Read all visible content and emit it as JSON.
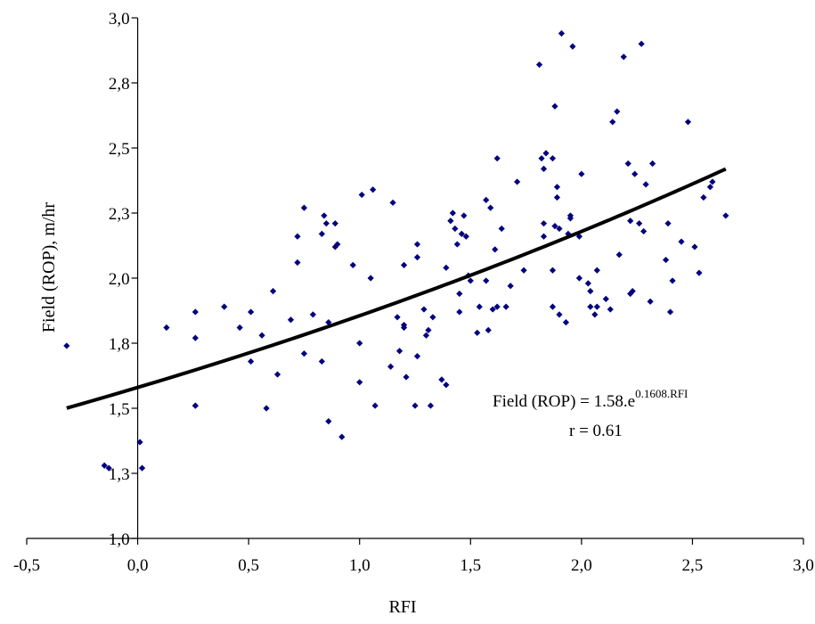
{
  "chart_data": {
    "type": "scatter",
    "xlabel": "RFI",
    "ylabel": "Field (ROP), m/hr",
    "xlim": [
      -0.5,
      3.0
    ],
    "ylim": [
      1.0,
      3.0
    ],
    "x_ticks": [
      "-0,5",
      "0,0",
      "0,5",
      "1,0",
      "1,5",
      "2,0",
      "2,5",
      "3,0"
    ],
    "y_ticks": [
      "1,0",
      "1,3",
      "1,5",
      "1,8",
      "2,0",
      "2,3",
      "2,5",
      "2,8",
      "3,0"
    ],
    "grid": false,
    "marker_color": "#000080",
    "fit_color": "#000000",
    "fit": {
      "model": "exponential",
      "a": 1.58,
      "b": 0.1608,
      "x_range": [
        -0.32,
        2.65
      ]
    },
    "annotation": {
      "equation_prefix": "Field (ROP) = 1.58.e",
      "equation_exponent": "0.1608.RFI",
      "r_text": "r = 0.61"
    },
    "series": [
      {
        "points": [
          [
            -0.32,
            1.74
          ],
          [
            -0.15,
            1.28
          ],
          [
            -0.13,
            1.27
          ],
          [
            0.01,
            1.37
          ],
          [
            0.02,
            1.27
          ],
          [
            0.13,
            1.81
          ],
          [
            0.26,
            1.51
          ],
          [
            0.26,
            1.51
          ],
          [
            0.26,
            1.77
          ],
          [
            0.26,
            1.87
          ],
          [
            0.39,
            1.89
          ],
          [
            0.46,
            1.81
          ],
          [
            0.51,
            1.68
          ],
          [
            0.51,
            1.87
          ],
          [
            0.56,
            1.78
          ],
          [
            0.58,
            1.5
          ],
          [
            0.61,
            1.95
          ],
          [
            0.63,
            1.63
          ],
          [
            0.69,
            1.84
          ],
          [
            0.72,
            2.06
          ],
          [
            0.72,
            2.16
          ],
          [
            0.75,
            1.71
          ],
          [
            0.75,
            2.27
          ],
          [
            0.79,
            1.86
          ],
          [
            0.83,
            1.68
          ],
          [
            0.83,
            2.17
          ],
          [
            0.84,
            2.24
          ],
          [
            0.85,
            2.21
          ],
          [
            0.86,
            1.83
          ],
          [
            0.86,
            1.45
          ],
          [
            0.89,
            2.12
          ],
          [
            0.89,
            2.21
          ],
          [
            0.9,
            2.13
          ],
          [
            0.92,
            1.39
          ],
          [
            0.97,
            2.05
          ],
          [
            1.0,
            1.6
          ],
          [
            1.0,
            1.75
          ],
          [
            1.01,
            2.32
          ],
          [
            1.05,
            2.0
          ],
          [
            1.06,
            2.34
          ],
          [
            1.07,
            1.51
          ],
          [
            1.14,
            1.66
          ],
          [
            1.15,
            2.29
          ],
          [
            1.17,
            1.85
          ],
          [
            1.18,
            1.72
          ],
          [
            1.2,
            1.81
          ],
          [
            1.2,
            1.82
          ],
          [
            1.2,
            2.05
          ],
          [
            1.21,
            1.62
          ],
          [
            1.25,
            1.51
          ],
          [
            1.26,
            1.7
          ],
          [
            1.26,
            2.08
          ],
          [
            1.26,
            2.13
          ],
          [
            1.29,
            1.88
          ],
          [
            1.3,
            1.78
          ],
          [
            1.31,
            1.8
          ],
          [
            1.32,
            1.51
          ],
          [
            1.33,
            1.85
          ],
          [
            1.37,
            1.61
          ],
          [
            1.39,
            1.59
          ],
          [
            1.39,
            2.04
          ],
          [
            1.41,
            2.22
          ],
          [
            1.42,
            2.25
          ],
          [
            1.43,
            2.19
          ],
          [
            1.44,
            2.13
          ],
          [
            1.45,
            1.87
          ],
          [
            1.45,
            1.94
          ],
          [
            1.46,
            2.17
          ],
          [
            1.47,
            2.24
          ],
          [
            1.48,
            2.16
          ],
          [
            1.49,
            2.01
          ],
          [
            1.5,
            1.99
          ],
          [
            1.53,
            1.79
          ],
          [
            1.54,
            1.89
          ],
          [
            1.57,
            1.99
          ],
          [
            1.57,
            2.3
          ],
          [
            1.58,
            1.8
          ],
          [
            1.59,
            2.27
          ],
          [
            1.6,
            1.88
          ],
          [
            1.61,
            2.11
          ],
          [
            1.62,
            1.89
          ],
          [
            1.62,
            2.46
          ],
          [
            1.64,
            2.19
          ],
          [
            1.66,
            1.89
          ],
          [
            1.68,
            1.97
          ],
          [
            1.71,
            2.37
          ],
          [
            1.74,
            2.03
          ],
          [
            1.81,
            2.82
          ],
          [
            1.82,
            2.46
          ],
          [
            1.83,
            2.42
          ],
          [
            1.83,
            2.16
          ],
          [
            1.83,
            2.21
          ],
          [
            1.84,
            2.48
          ],
          [
            1.87,
            2.46
          ],
          [
            1.87,
            2.03
          ],
          [
            1.87,
            1.89
          ],
          [
            1.88,
            2.2
          ],
          [
            1.88,
            2.66
          ],
          [
            1.89,
            2.35
          ],
          [
            1.89,
            2.31
          ],
          [
            1.9,
            1.86
          ],
          [
            1.9,
            2.19
          ],
          [
            1.91,
            2.94
          ],
          [
            1.93,
            1.83
          ],
          [
            1.94,
            2.17
          ],
          [
            1.95,
            2.23
          ],
          [
            1.95,
            2.24
          ],
          [
            1.96,
            2.89
          ],
          [
            1.99,
            2.0
          ],
          [
            1.99,
            2.16
          ],
          [
            2.0,
            2.4
          ],
          [
            2.03,
            1.98
          ],
          [
            2.04,
            1.89
          ],
          [
            2.04,
            1.95
          ],
          [
            2.06,
            1.86
          ],
          [
            2.07,
            1.89
          ],
          [
            2.07,
            2.03
          ],
          [
            2.11,
            1.92
          ],
          [
            2.13,
            1.88
          ],
          [
            2.14,
            2.6
          ],
          [
            2.16,
            2.64
          ],
          [
            2.17,
            2.09
          ],
          [
            2.19,
            2.85
          ],
          [
            2.21,
            2.44
          ],
          [
            2.22,
            2.22
          ],
          [
            2.22,
            1.94
          ],
          [
            2.23,
            1.95
          ],
          [
            2.24,
            2.4
          ],
          [
            2.26,
            2.21
          ],
          [
            2.27,
            2.9
          ],
          [
            2.28,
            2.18
          ],
          [
            2.29,
            2.36
          ],
          [
            2.31,
            1.91
          ],
          [
            2.32,
            2.44
          ],
          [
            2.38,
            2.07
          ],
          [
            2.39,
            2.21
          ],
          [
            2.4,
            1.87
          ],
          [
            2.41,
            1.99
          ],
          [
            2.45,
            2.14
          ],
          [
            2.48,
            2.6
          ],
          [
            2.51,
            2.12
          ],
          [
            2.53,
            2.02
          ],
          [
            2.55,
            2.31
          ],
          [
            2.58,
            2.35
          ],
          [
            2.59,
            2.37
          ],
          [
            2.65,
            2.24
          ]
        ]
      }
    ]
  }
}
